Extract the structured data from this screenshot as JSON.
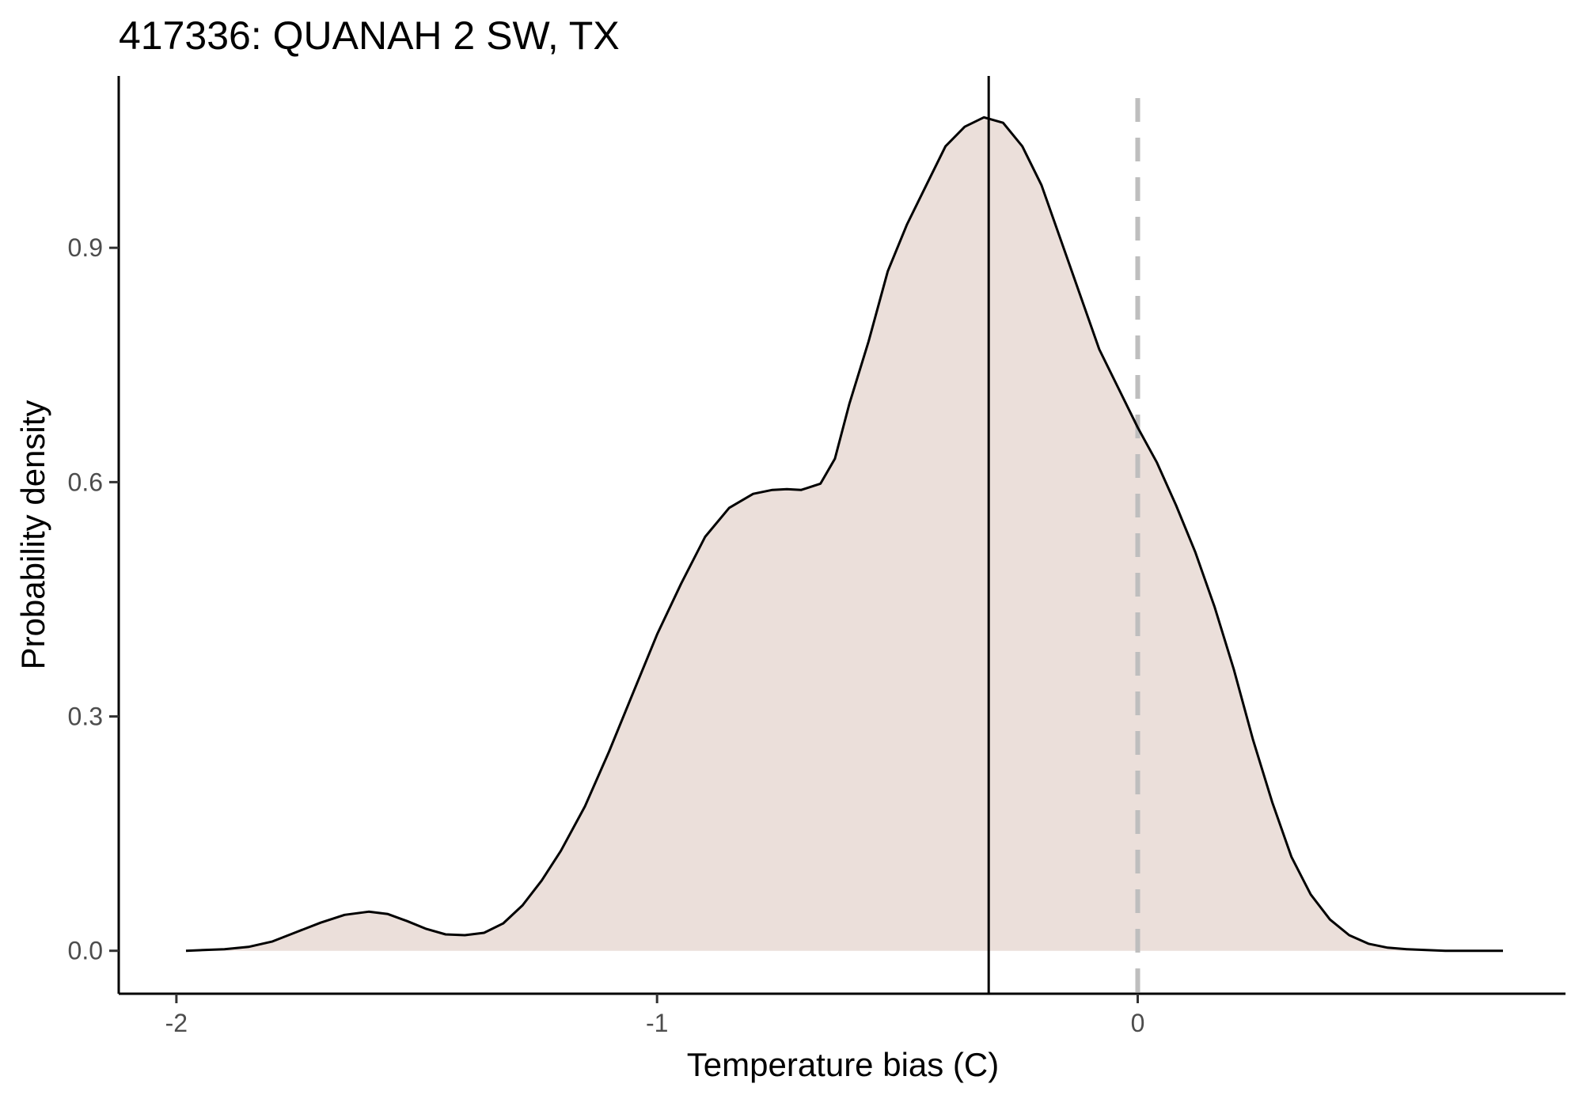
{
  "chart_data": {
    "type": "area",
    "title": "417336: QUANAH 2 SW, TX",
    "xlabel": "Temperature bias (C)",
    "ylabel": "Probability density",
    "xlim": [
      -2.12,
      0.89
    ],
    "ylim": [
      -0.055,
      1.12
    ],
    "x_ticks": [
      -2,
      -1,
      0
    ],
    "x_tick_labels": [
      "-2",
      "-1",
      "0"
    ],
    "y_ticks": [
      0.0,
      0.3,
      0.6,
      0.9
    ],
    "y_tick_labels": [
      "0.0",
      "0.3",
      "0.6",
      "0.9"
    ],
    "grid": false,
    "legend": "none",
    "fill_color": "#ebdfda",
    "line_color": "#000000",
    "series": [
      {
        "x": [
          -1.98,
          -1.9,
          -1.85,
          -1.8,
          -1.75,
          -1.7,
          -1.65,
          -1.6,
          -1.56,
          -1.52,
          -1.48,
          -1.44,
          -1.4,
          -1.36,
          -1.32,
          -1.28,
          -1.24,
          -1.2,
          -1.15,
          -1.1,
          -1.05,
          -1.0,
          -0.95,
          -0.9,
          -0.85,
          -0.8,
          -0.76,
          -0.73,
          -0.7,
          -0.66,
          -0.63,
          -0.6,
          -0.56,
          -0.52,
          -0.48,
          -0.44,
          -0.4,
          -0.36,
          -0.32,
          -0.28,
          -0.24,
          -0.2,
          -0.16,
          -0.12,
          -0.08,
          -0.04,
          0.0,
          0.04,
          0.08,
          0.12,
          0.16,
          0.2,
          0.24,
          0.28,
          0.32,
          0.36,
          0.4,
          0.44,
          0.48,
          0.52,
          0.56,
          0.6,
          0.64,
          0.68,
          0.72,
          0.76
        ],
        "y": [
          0.0,
          0.002,
          0.005,
          0.012,
          0.024,
          0.036,
          0.046,
          0.05,
          0.047,
          0.038,
          0.028,
          0.021,
          0.02,
          0.023,
          0.035,
          0.058,
          0.09,
          0.128,
          0.185,
          0.255,
          0.33,
          0.405,
          0.47,
          0.53,
          0.567,
          0.585,
          0.59,
          0.591,
          0.59,
          0.598,
          0.63,
          0.7,
          0.78,
          0.87,
          0.93,
          0.98,
          1.03,
          1.055,
          1.067,
          1.06,
          1.03,
          0.98,
          0.91,
          0.84,
          0.77,
          0.72,
          0.67,
          0.625,
          0.57,
          0.51,
          0.44,
          0.36,
          0.27,
          0.19,
          0.12,
          0.072,
          0.04,
          0.02,
          0.009,
          0.004,
          0.002,
          0.001,
          0.0,
          0.0,
          0.0,
          0.0
        ]
      }
    ],
    "vlines": [
      {
        "x": -0.31,
        "style": "solid",
        "color": "#000000"
      },
      {
        "x": 0.0,
        "style": "dashed",
        "color": "#bebebe"
      }
    ]
  }
}
